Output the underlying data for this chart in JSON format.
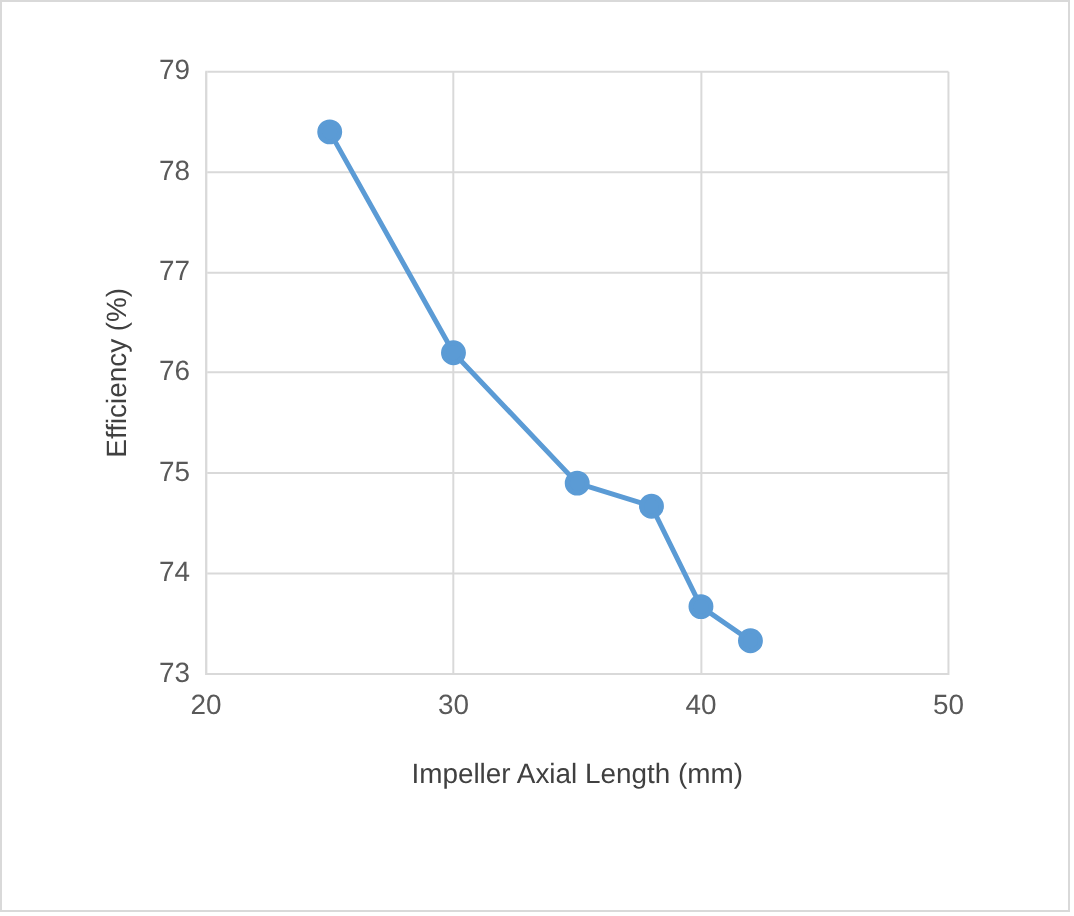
{
  "chart_data": {
    "type": "line",
    "xlabel": "Impeller Axial Length (mm)",
    "ylabel": "Efficiency (%)",
    "x": [
      25,
      30,
      35,
      38,
      40,
      42
    ],
    "series": [
      {
        "color": "#5b9bd5",
        "values": [
          78.4,
          76.2,
          74.9,
          74.67,
          73.67,
          73.33
        ]
      }
    ],
    "xlim": [
      20,
      50
    ],
    "xticks": [
      20,
      30,
      40,
      50
    ],
    "ylim": [
      73,
      79
    ],
    "yticks": [
      73,
      74,
      75,
      76,
      77,
      78,
      79
    ],
    "grid": true,
    "legend": false,
    "marker": "circle",
    "line_style": "solid"
  }
}
